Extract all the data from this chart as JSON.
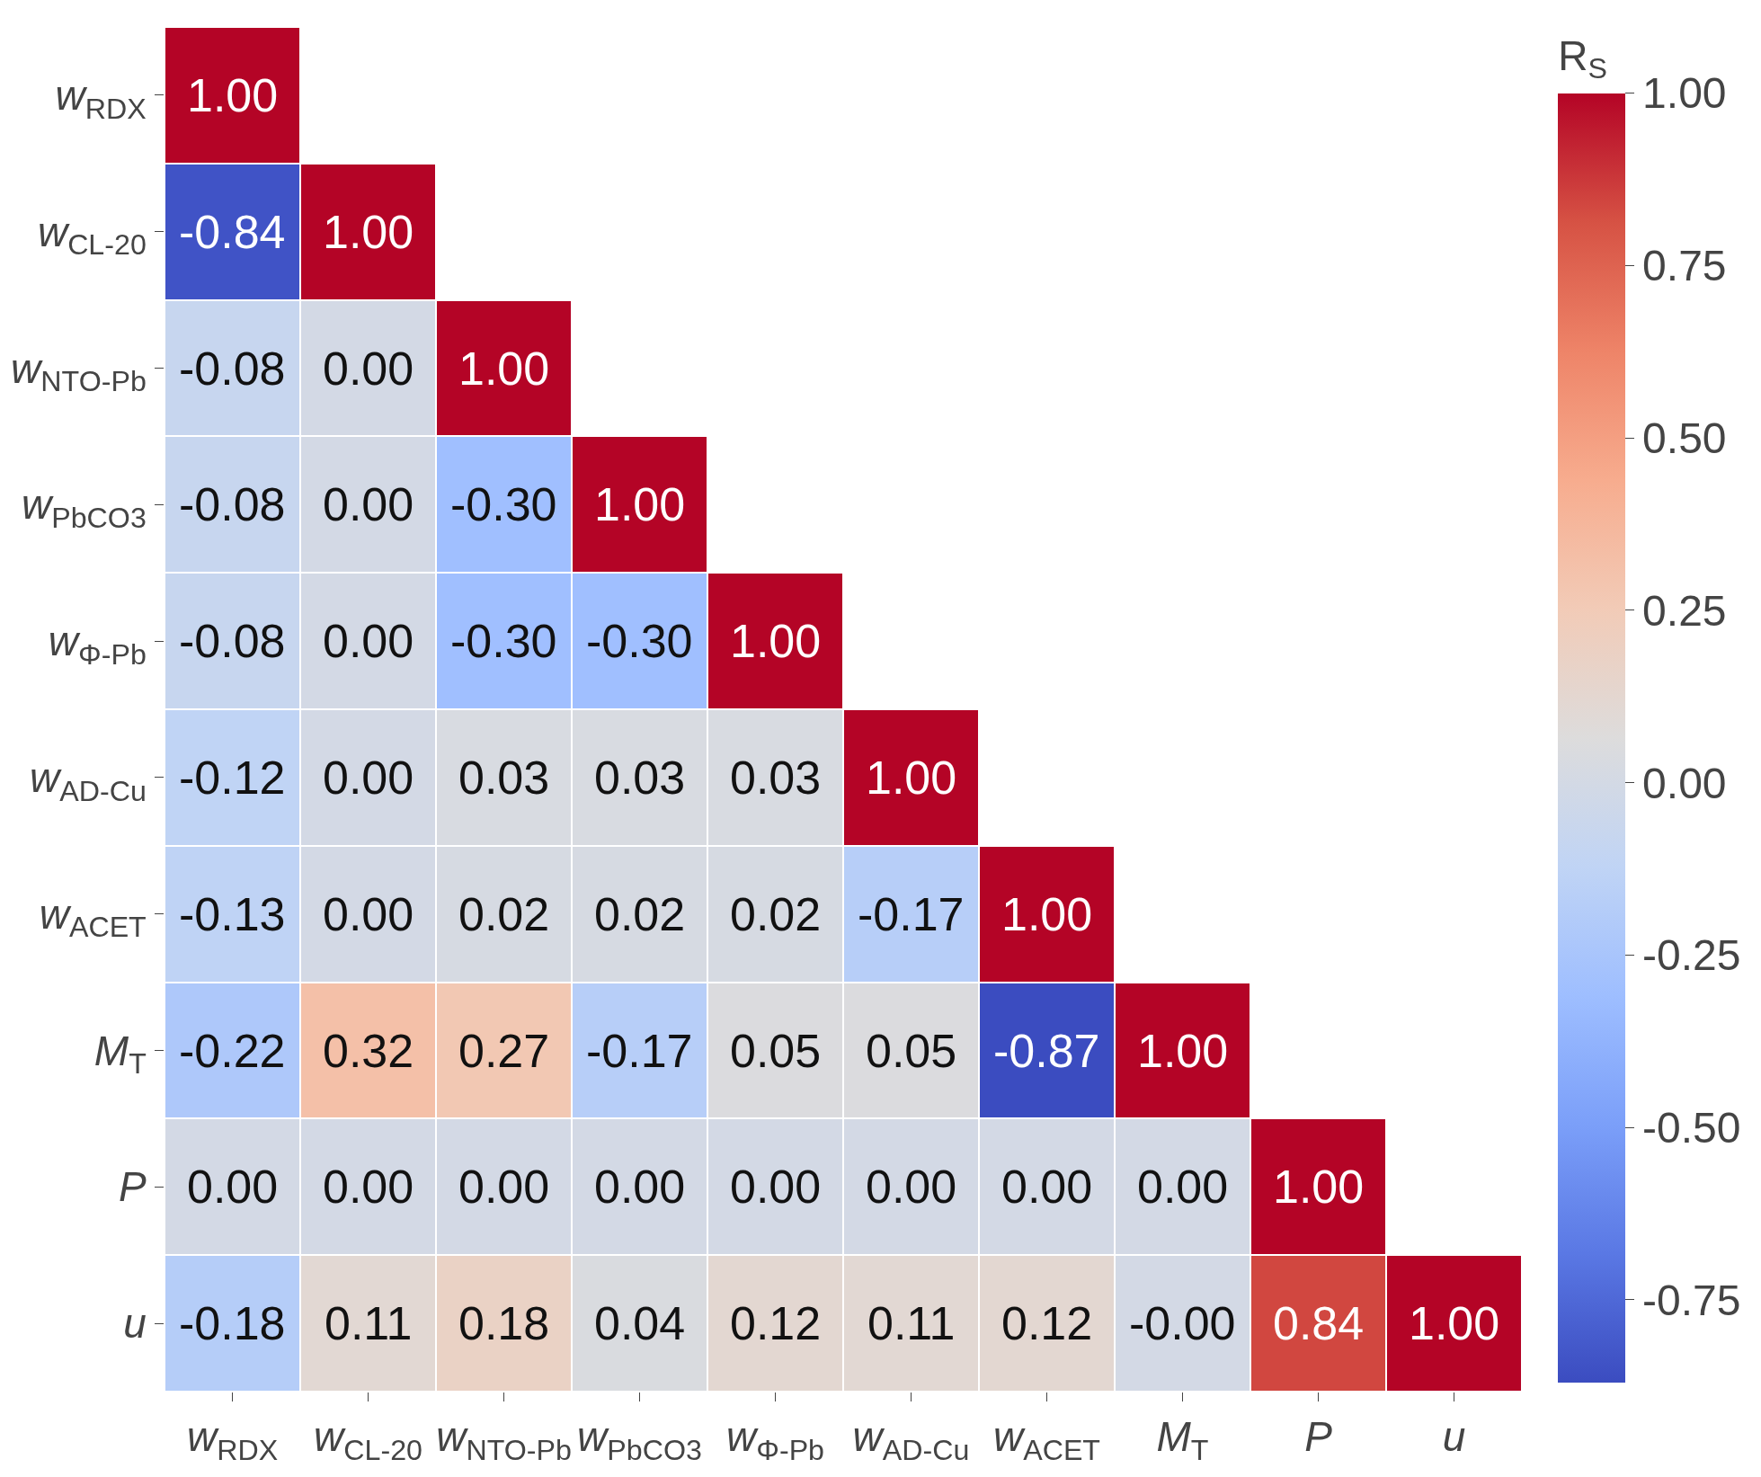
{
  "chart_data": {
    "type": "heatmap",
    "clabel": "R$_{S}$",
    "categories": [
      "w$_{RDX}$",
      "w$_{CL-20}$",
      "w$_{NTO-Pb}$",
      "w$_{PbCO3}$",
      "w$_{Φ-Pb}$",
      "w$_{AD-Cu}$",
      "w$_{ACET}$",
      "M$_{T}$",
      "P",
      "u"
    ],
    "y_categories": [
      "w$_{RDX}$",
      "w$_{CL-20}$",
      "w$_{NTO-Pb}$",
      "w$_{PbCO3}$",
      "w$_{Φ-Pb}$",
      "w$_{AD-Cu}$",
      "w$_{ACET}$",
      "M$_{T}$",
      "P",
      "u"
    ],
    "cells": [
      [
        1.0,
        null,
        null,
        null,
        null,
        null,
        null,
        null,
        null,
        null
      ],
      [
        -0.84,
        1.0,
        null,
        null,
        null,
        null,
        null,
        null,
        null,
        null
      ],
      [
        -0.08,
        0.0,
        1.0,
        null,
        null,
        null,
        null,
        null,
        null,
        null
      ],
      [
        -0.08,
        0.0,
        -0.3,
        1.0,
        null,
        null,
        null,
        null,
        null,
        null
      ],
      [
        -0.08,
        0.0,
        -0.3,
        -0.3,
        1.0,
        null,
        null,
        null,
        null,
        null
      ],
      [
        -0.12,
        0.0,
        0.03,
        0.03,
        0.03,
        1.0,
        null,
        null,
        null,
        null
      ],
      [
        -0.13,
        0.0,
        0.02,
        0.02,
        0.02,
        -0.17,
        1.0,
        null,
        null,
        null
      ],
      [
        -0.22,
        0.32,
        0.27,
        -0.17,
        0.05,
        0.05,
        -0.87,
        1.0,
        null,
        null
      ],
      [
        0.0,
        0.0,
        0.0,
        0.0,
        0.0,
        0.0,
        0.0,
        0.0,
        1.0,
        null
      ],
      [
        -0.18,
        0.11,
        0.18,
        0.04,
        0.12,
        0.11,
        0.12,
        -0.0,
        0.84,
        1.0
      ]
    ],
    "cell_labels": [
      [
        "1.00",
        null,
        null,
        null,
        null,
        null,
        null,
        null,
        null,
        null
      ],
      [
        "-0.84",
        "1.00",
        null,
        null,
        null,
        null,
        null,
        null,
        null,
        null
      ],
      [
        "-0.08",
        "0.00",
        "1.00",
        null,
        null,
        null,
        null,
        null,
        null,
        null
      ],
      [
        "-0.08",
        "0.00",
        "-0.30",
        "1.00",
        null,
        null,
        null,
        null,
        null,
        null
      ],
      [
        "-0.08",
        "0.00",
        "-0.30",
        "-0.30",
        "1.00",
        null,
        null,
        null,
        null,
        null
      ],
      [
        "-0.12",
        "0.00",
        "0.03",
        "0.03",
        "0.03",
        "1.00",
        null,
        null,
        null,
        null
      ],
      [
        "-0.13",
        "0.00",
        "0.02",
        "0.02",
        "0.02",
        "-0.17",
        "1.00",
        null,
        null,
        null
      ],
      [
        "-0.22",
        "0.32",
        "0.27",
        "-0.17",
        "0.05",
        "0.05",
        "-0.87",
        "1.00",
        null,
        null
      ],
      [
        "0.00",
        "0.00",
        "0.00",
        "0.00",
        "0.00",
        "0.00",
        "0.00",
        "0.00",
        "1.00",
        null
      ],
      [
        "-0.18",
        "0.11",
        "0.18",
        "0.04",
        "0.12",
        "0.11",
        "0.12",
        "-0.00",
        "0.84",
        "1.00"
      ]
    ],
    "clim": [
      -0.87,
      1.0
    ],
    "cticks": [
      {
        "value": -0.75,
        "label": "-0.75"
      },
      {
        "value": -0.5,
        "label": "-0.50"
      },
      {
        "value": -0.25,
        "label": "-0.25"
      },
      {
        "value": 0,
        "label": "0.00"
      },
      {
        "value": 0.25,
        "label": "0.25"
      },
      {
        "value": 0.5,
        "label": "0.50"
      },
      {
        "value": 0.75,
        "label": "0.75"
      },
      {
        "value": 1,
        "label": "1.00"
      }
    ]
  }
}
